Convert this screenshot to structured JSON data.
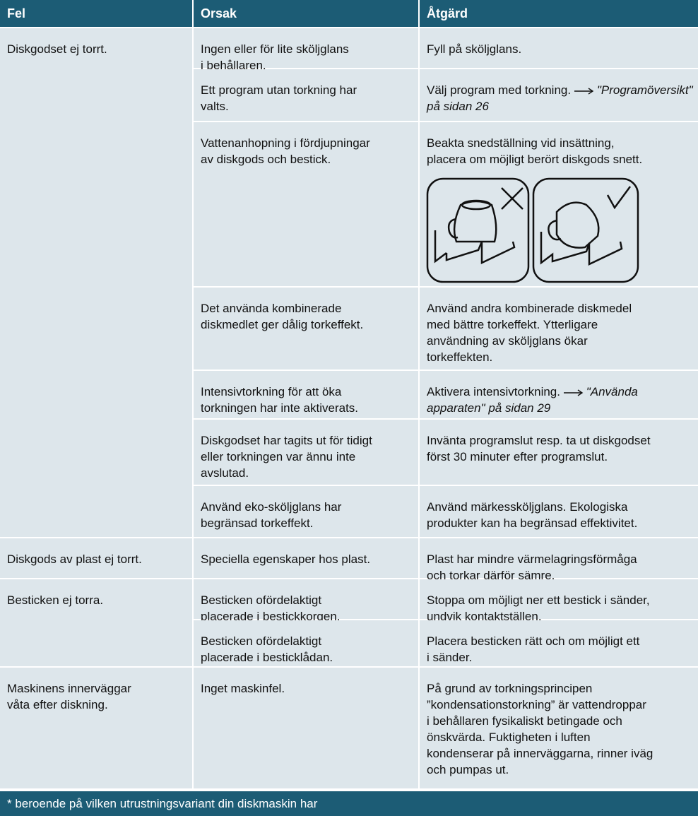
{
  "header": [
    "Fel",
    "Orsak",
    "Åtgärd"
  ],
  "groups": [
    {
      "fault": [
        "Diskgodset ej torrt."
      ],
      "items": [
        {
          "cause": [
            "Ingen eller för lite sköljglans",
            "i behållaren."
          ],
          "remedy": {
            "lines": [
              "Fyll på sköljglans."
            ]
          }
        },
        {
          "cause": [
            "Ett program utan torkning har",
            "valts."
          ],
          "remedy": {
            "text": "Välj program med torkning.",
            "ref": "\"Programöversikt\" på sidan 26"
          }
        },
        {
          "cause": [
            "Vattenanhopning i fördjupningar",
            "av diskgods och bestick."
          ],
          "remedy": {
            "lines": [
              "Beakta snedställning vid insättning,",
              "placera om möjligt berört diskgods snett."
            ]
          }
        },
        {
          "cause": [
            "Det använda kombinerade",
            "diskmedlet ger dålig torkeffekt."
          ],
          "remedy": {
            "lines": [
              "Använd andra kombinerade diskmedel",
              "med bättre torkeffekt. Ytterligare",
              "användning av sköljglans ökar",
              "torkeffekten."
            ]
          }
        },
        {
          "cause": [
            "Intensivtorkning för att öka",
            "torkningen har inte aktiverats."
          ],
          "remedy": {
            "text": "Aktivera intensivtorkning.",
            "ref": "\"Använda apparaten\" på sidan 29"
          }
        },
        {
          "cause": [
            "Diskgodset har tagits ut för tidigt",
            "eller torkningen var ännu inte",
            "avslutad."
          ],
          "remedy": {
            "lines": [
              "Invänta programslut resp. ta ut diskgodset",
              "först 30 minuter efter programslut."
            ]
          }
        },
        {
          "cause": [
            "Använd eko-sköljglans har",
            "begränsad torkeffekt."
          ],
          "remedy": {
            "lines": [
              "Använd märkessköljglans. Ekologiska",
              "produkter kan ha begränsad effektivitet."
            ]
          }
        }
      ]
    },
    {
      "fault": [
        "Diskgods av plast ej torrt."
      ],
      "items": [
        {
          "cause": [
            "Speciella egenskaper hos plast."
          ],
          "remedy": {
            "lines": [
              "Plast har mindre värmelagringsförmåga",
              "och torkar därför sämre."
            ]
          }
        }
      ]
    },
    {
      "fault": [
        "Besticken ej torra."
      ],
      "items": [
        {
          "cause": [
            "Besticken ofördelaktigt",
            "placerade i bestickkorgen."
          ],
          "remedy": {
            "lines": [
              "Stoppa om möjligt ner ett bestick i sänder,",
              "undvik kontaktställen."
            ]
          }
        },
        {
          "cause": [
            "Besticken ofördelaktigt",
            "placerade i besticklådan."
          ],
          "remedy": {
            "lines": [
              "Placera besticken rätt och om möjligt ett",
              "i sänder."
            ]
          }
        }
      ]
    },
    {
      "fault": [
        "Maskinens innerväggar",
        "våta efter diskning."
      ],
      "items": [
        {
          "cause": [
            "Inget maskinfel."
          ],
          "remedy": {
            "lines": [
              "På grund av torkningsprincipen",
              "”kondensationstorkning” är vattendroppar",
              "i behållaren fysikaliskt betingade och",
              "önskvärda. Fuktigheten i luften",
              "kondenserar på innerväggarna, rinner iväg",
              "och pumpas ut."
            ]
          }
        }
      ]
    }
  ],
  "footer": "* beroende på vilken utrustningsvariant din diskmaskin har"
}
